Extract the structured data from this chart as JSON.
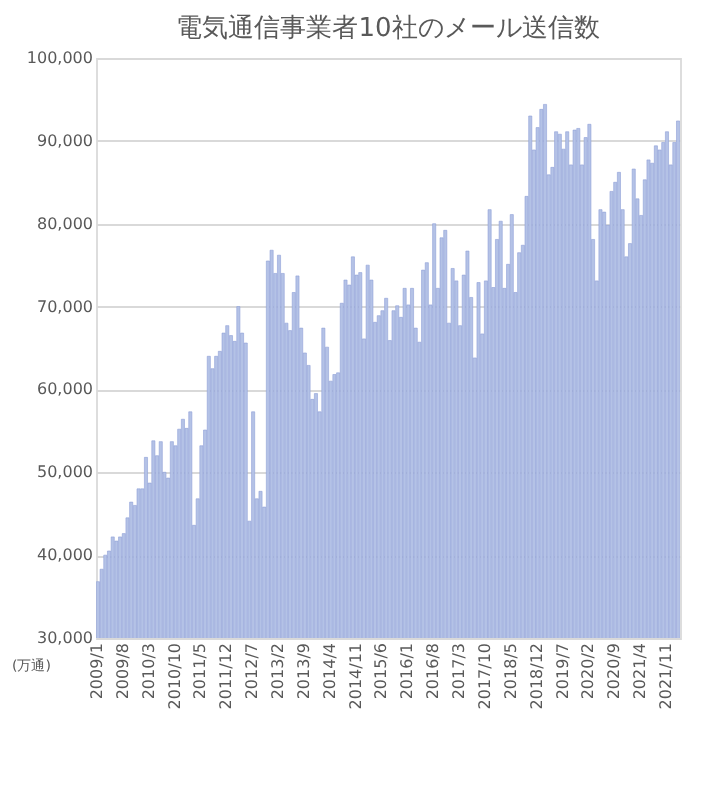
{
  "chart_data": {
    "type": "bar",
    "title": "電気通信事業者10社のメール送信数",
    "categories": [
      "2009/1",
      null,
      null,
      null,
      null,
      null,
      null,
      "2009/8",
      null,
      null,
      null,
      null,
      null,
      null,
      "2010/3",
      null,
      null,
      null,
      null,
      null,
      null,
      "2010/10",
      null,
      null,
      null,
      null,
      null,
      null,
      "2011/5",
      null,
      null,
      null,
      null,
      null,
      null,
      "2011/12",
      null,
      null,
      null,
      null,
      null,
      null,
      "2012/7",
      null,
      null,
      null,
      null,
      null,
      null,
      "2013/2",
      null,
      null,
      null,
      null,
      null,
      null,
      "2013/9",
      null,
      null,
      null,
      null,
      null,
      null,
      "2014/4",
      null,
      null,
      null,
      null,
      null,
      null,
      "2014/11",
      null,
      null,
      null,
      null,
      null,
      null,
      "2015/6",
      null,
      null,
      null,
      null,
      null,
      null,
      "2016/1",
      null,
      null,
      null,
      null,
      null,
      null,
      "2016/8",
      null,
      null,
      null,
      null,
      null,
      null,
      "2017/3",
      null,
      null,
      null,
      null,
      null,
      null,
      "2017/10",
      null,
      null,
      null,
      null,
      null,
      null,
      "2018/5",
      null,
      null,
      null,
      null,
      null,
      null,
      "2018/12",
      null,
      null,
      null,
      null,
      null,
      null,
      "2019/7",
      null,
      null,
      null,
      null,
      null,
      null,
      "2020/2",
      null,
      null,
      null,
      null,
      null,
      null,
      "2020/9",
      null,
      null,
      null,
      null,
      null,
      null,
      "2021/4",
      null,
      null,
      null,
      null,
      null,
      null,
      "2021/11",
      null,
      null,
      null
    ],
    "values": [
      36800,
      38300,
      40000,
      40500,
      42200,
      41700,
      42200,
      42600,
      44500,
      46400,
      46000,
      48000,
      48000,
      51800,
      48700,
      53800,
      52000,
      53700,
      50000,
      49300,
      53700,
      53200,
      55200,
      56400,
      55300,
      57300,
      43600,
      46800,
      53200,
      55100,
      64000,
      62500,
      64000,
      64600,
      66800,
      67700,
      66500,
      65800,
      70000,
      66800,
      65600,
      44100,
      57300,
      46800,
      47700,
      45800,
      75500,
      76800,
      74000,
      76200,
      74000,
      68000,
      67100,
      71700,
      73700,
      67400,
      64400,
      62900,
      58800,
      59500,
      57300,
      67400,
      65100,
      61000,
      61800,
      62000,
      70400,
      73200,
      72600,
      76000,
      73800,
      74100,
      66100,
      75000,
      73200,
      68100,
      68900,
      69500,
      71000,
      65900,
      69500,
      70100,
      68700,
      72200,
      70200,
      72200,
      67400,
      65700,
      74400,
      75300,
      70200,
      80000,
      72200,
      78300,
      79200,
      68000,
      74600,
      73100,
      67700,
      73800,
      76700,
      71100,
      63800,
      72900,
      66700,
      73100,
      81700,
      72300,
      78100,
      80300,
      72200,
      75100,
      81100,
      71700,
      76500,
      77400,
      83300,
      93000,
      88900,
      91600,
      93800,
      94400,
      85900,
      86800,
      91100,
      90800,
      89000,
      91100,
      87100,
      91300,
      91500,
      87100,
      90400,
      92000,
      78100,
      73100,
      81700,
      81400,
      79800,
      83900,
      85000,
      86200,
      81700,
      76000,
      77600,
      86600,
      83000,
      81000,
      85300,
      87700,
      87300,
      89400,
      88900,
      89800,
      91100,
      87100,
      89800,
      92400
    ],
    "color": "#b4c2e6",
    "ylim": [
      30000,
      100000
    ],
    "yticks": [
      {
        "value": 30000,
        "label": "30,000"
      },
      {
        "value": 40000,
        "label": "40,000"
      },
      {
        "value": 50000,
        "label": "50,000"
      },
      {
        "value": 60000,
        "label": "60,000"
      },
      {
        "value": 70000,
        "label": "70,000"
      },
      {
        "value": 80000,
        "label": "80,000"
      },
      {
        "value": 90000,
        "label": "90,000"
      },
      {
        "value": 100000,
        "label": "100,000"
      }
    ],
    "grid": "y",
    "annotations": [
      "(万通)"
    ]
  }
}
